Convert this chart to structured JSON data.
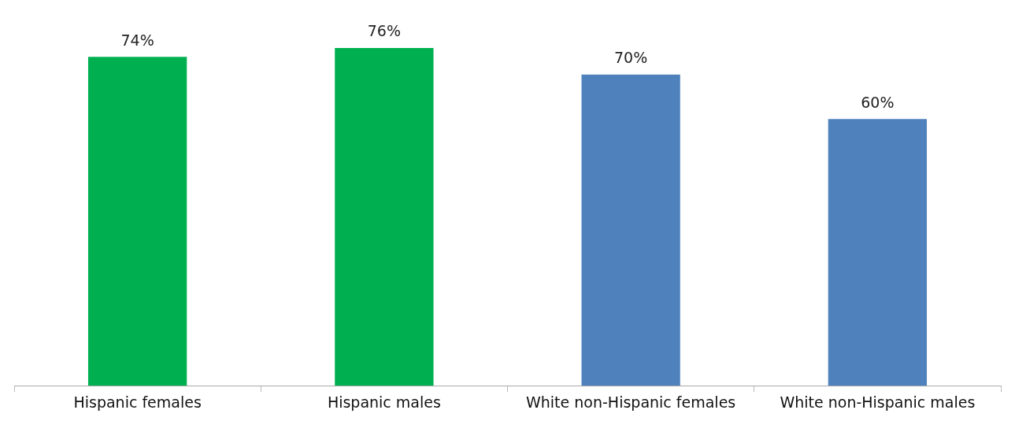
{
  "chart_data": {
    "type": "bar",
    "categories": [
      "Hispanic females",
      "Hispanic males",
      "White non-Hispanic females",
      "White non-Hispanic males"
    ],
    "values": [
      74,
      76,
      70,
      60
    ],
    "colors": [
      "#00b050",
      "#00b050",
      "#4f81bd",
      "#4f81bd"
    ],
    "value_labels": [
      "74%",
      "76%",
      "70%",
      "60%"
    ],
    "grid": false,
    "legend": false
  }
}
